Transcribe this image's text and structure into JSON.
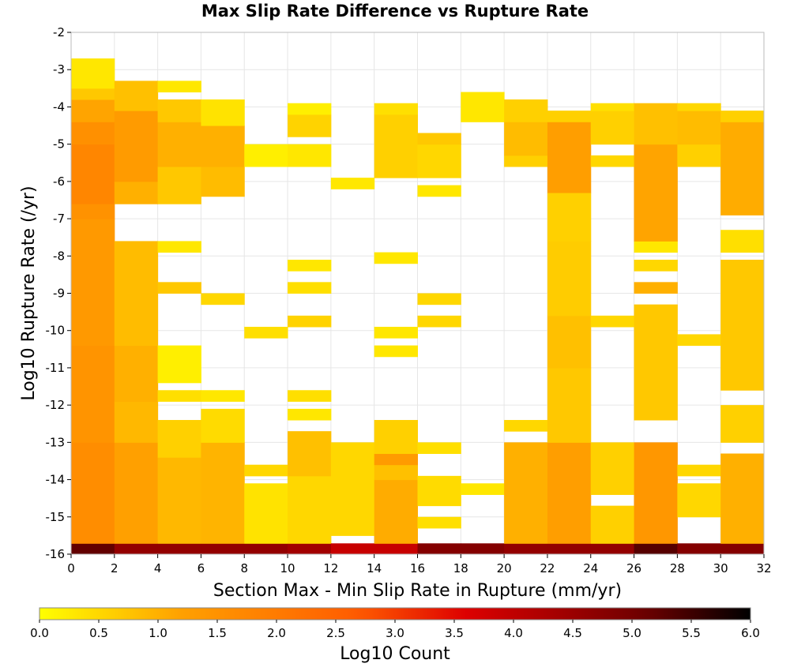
{
  "chart_data": {
    "type": "heatmap",
    "title": "Max Slip Rate Difference vs Rupture Rate",
    "xlabel": "Section Max - Min Slip Rate in Rupture (mm/yr)",
    "ylabel": "Log10 Rupture Rate (/yr)",
    "xlim": [
      0,
      32
    ],
    "ylim": [
      -16,
      -2
    ],
    "x_ticks": [
      "0",
      "2",
      "4",
      "6",
      "8",
      "10",
      "12",
      "14",
      "16",
      "18",
      "20",
      "22",
      "24",
      "26",
      "28",
      "30",
      "32"
    ],
    "y_ticks": [
      "-2",
      "-3",
      "-4",
      "-5",
      "-6",
      "-7",
      "-8",
      "-9",
      "-10",
      "-11",
      "-12",
      "-13",
      "-14",
      "-15",
      "-16"
    ],
    "colorbar": {
      "label": "Log10 Count",
      "range": [
        0.0,
        6.0
      ],
      "ticks": [
        "0.0",
        "0.5",
        "1.0",
        "1.5",
        "2.0",
        "2.5",
        "3.0",
        "3.5",
        "4.0",
        "4.5",
        "5.0",
        "5.5",
        "6.0"
      ],
      "colors": [
        "#ffff00",
        "#ffa000",
        "#ff5a00",
        "#dd0000",
        "#6e0000",
        "#000000"
      ]
    },
    "x_bin_width": 2,
    "y_bin_height": 0.2857,
    "grid": true,
    "columns": [
      {
        "x0": 0,
        "runs": [
          {
            "y0": -16,
            "y1": -15.71,
            "v": 5.2
          },
          {
            "y0": -15.71,
            "y1": -13.0,
            "v": 1.6
          },
          {
            "y0": -13.0,
            "y1": -10.4,
            "v": 1.45
          },
          {
            "y0": -10.4,
            "y1": -7.0,
            "v": 1.35
          },
          {
            "y0": -7.0,
            "y1": -6.6,
            "v": 1.5
          },
          {
            "y0": -6.6,
            "y1": -5.0,
            "v": 1.75
          },
          {
            "y0": -5.0,
            "y1": -4.4,
            "v": 1.55
          },
          {
            "y0": -4.4,
            "y1": -3.8,
            "v": 1.15
          },
          {
            "y0": -3.8,
            "y1": -3.5,
            "v": 0.7
          },
          {
            "y0": -3.5,
            "y1": -2.7,
            "v": 0.3
          }
        ]
      },
      {
        "x0": 2,
        "runs": [
          {
            "y0": -16,
            "y1": -15.71,
            "v": 4.6
          },
          {
            "y0": -15.71,
            "y1": -13.0,
            "v": 1.2
          },
          {
            "y0": -13.0,
            "y1": -11.9,
            "v": 0.9
          },
          {
            "y0": -11.9,
            "y1": -10.4,
            "v": 1.0
          },
          {
            "y0": -10.4,
            "y1": -7.6,
            "v": 0.85
          },
          {
            "y0": -6.6,
            "y1": -6.0,
            "v": 1.0
          },
          {
            "y0": -6.0,
            "y1": -4.1,
            "v": 1.3
          },
          {
            "y0": -4.1,
            "y1": -3.3,
            "v": 0.8
          }
        ]
      },
      {
        "x0": 4,
        "runs": [
          {
            "y0": -16,
            "y1": -15.71,
            "v": 4.6
          },
          {
            "y0": -15.71,
            "y1": -13.4,
            "v": 0.9
          },
          {
            "y0": -13.4,
            "y1": -12.4,
            "v": 0.6
          },
          {
            "y0": -11.9,
            "y1": -11.6,
            "v": 0.4
          },
          {
            "y0": -11.4,
            "y1": -10.4,
            "v": 0.2
          },
          {
            "y0": -9.0,
            "y1": -8.7,
            "v": 0.7
          },
          {
            "y0": -7.9,
            "y1": -7.6,
            "v": 0.3
          },
          {
            "y0": -6.6,
            "y1": -5.6,
            "v": 0.7
          },
          {
            "y0": -5.6,
            "y1": -4.4,
            "v": 1.0
          },
          {
            "y0": -4.4,
            "y1": -3.8,
            "v": 0.7
          },
          {
            "y0": -3.6,
            "y1": -3.3,
            "v": 0.3
          }
        ]
      },
      {
        "x0": 6,
        "runs": [
          {
            "y0": -16,
            "y1": -15.71,
            "v": 4.6
          },
          {
            "y0": -15.71,
            "y1": -13.0,
            "v": 0.95
          },
          {
            "y0": -13.0,
            "y1": -12.1,
            "v": 0.45
          },
          {
            "y0": -11.9,
            "y1": -11.6,
            "v": 0.3
          },
          {
            "y0": -9.3,
            "y1": -9.0,
            "v": 0.5
          },
          {
            "y0": -6.4,
            "y1": -5.6,
            "v": 0.85
          },
          {
            "y0": -5.6,
            "y1": -4.5,
            "v": 1.0
          },
          {
            "y0": -4.5,
            "y1": -3.8,
            "v": 0.35
          }
        ]
      },
      {
        "x0": 8,
        "runs": [
          {
            "y0": -16,
            "y1": -15.71,
            "v": 4.6
          },
          {
            "y0": -15.71,
            "y1": -14.1,
            "v": 0.35
          },
          {
            "y0": -13.9,
            "y1": -13.6,
            "v": 0.5
          },
          {
            "y0": -10.2,
            "y1": -9.9,
            "v": 0.4
          },
          {
            "y0": -5.6,
            "y1": -5.0,
            "v": 0.2
          }
        ]
      },
      {
        "x0": 10,
        "runs": [
          {
            "y0": -16,
            "y1": -15.71,
            "v": 4.4
          },
          {
            "y0": -15.71,
            "y1": -13.9,
            "v": 0.5
          },
          {
            "y0": -13.9,
            "y1": -12.7,
            "v": 0.8
          },
          {
            "y0": -12.4,
            "y1": -12.1,
            "v": 0.3
          },
          {
            "y0": -11.9,
            "y1": -11.6,
            "v": 0.4
          },
          {
            "y0": -9.9,
            "y1": -9.6,
            "v": 0.55
          },
          {
            "y0": -9.0,
            "y1": -8.7,
            "v": 0.4
          },
          {
            "y0": -8.4,
            "y1": -8.1,
            "v": 0.3
          },
          {
            "y0": -5.6,
            "y1": -5.0,
            "v": 0.3
          },
          {
            "y0": -4.8,
            "y1": -4.2,
            "v": 0.55
          },
          {
            "y0": -4.2,
            "y1": -3.9,
            "v": 0.2
          }
        ]
      },
      {
        "x0": 12,
        "runs": [
          {
            "y0": -16,
            "y1": -15.71,
            "v": 3.9
          },
          {
            "y0": -15.5,
            "y1": -13.0,
            "v": 0.5
          },
          {
            "y0": -6.2,
            "y1": -5.9,
            "v": 0.3
          }
        ]
      },
      {
        "x0": 14,
        "runs": [
          {
            "y0": -16,
            "y1": -15.71,
            "v": 3.9
          },
          {
            "y0": -15.71,
            "y1": -14.0,
            "v": 1.05
          },
          {
            "y0": -14.0,
            "y1": -13.6,
            "v": 0.8
          },
          {
            "y0": -13.6,
            "y1": -13.3,
            "v": 1.3
          },
          {
            "y0": -13.3,
            "y1": -12.4,
            "v": 0.6
          },
          {
            "y0": -10.7,
            "y1": -10.4,
            "v": 0.3
          },
          {
            "y0": -10.2,
            "y1": -9.9,
            "v": 0.3
          },
          {
            "y0": -8.2,
            "y1": -7.9,
            "v": 0.3
          },
          {
            "y0": -5.9,
            "y1": -4.2,
            "v": 0.6
          },
          {
            "y0": -4.2,
            "y1": -3.9,
            "v": 0.4
          }
        ]
      },
      {
        "x0": 16,
        "runs": [
          {
            "y0": -16,
            "y1": -15.71,
            "v": 4.8
          },
          {
            "y0": -15.3,
            "y1": -15.0,
            "v": 0.4
          },
          {
            "y0": -14.7,
            "y1": -13.9,
            "v": 0.45
          },
          {
            "y0": -13.3,
            "y1": -13.0,
            "v": 0.4
          },
          {
            "y0": -9.9,
            "y1": -9.6,
            "v": 0.5
          },
          {
            "y0": -9.3,
            "y1": -9.0,
            "v": 0.5
          },
          {
            "y0": -6.4,
            "y1": -6.1,
            "v": 0.3
          },
          {
            "y0": -5.9,
            "y1": -5.0,
            "v": 0.5
          },
          {
            "y0": -5.0,
            "y1": -4.7,
            "v": 0.7
          }
        ]
      },
      {
        "x0": 18,
        "runs": [
          {
            "y0": -16,
            "y1": -15.71,
            "v": 4.8
          },
          {
            "y0": -14.4,
            "y1": -14.1,
            "v": 0.3
          },
          {
            "y0": -4.4,
            "y1": -3.6,
            "v": 0.3
          }
        ]
      },
      {
        "x0": 20,
        "runs": [
          {
            "y0": -16,
            "y1": -15.71,
            "v": 4.6
          },
          {
            "y0": -15.71,
            "y1": -13.0,
            "v": 1.0
          },
          {
            "y0": -12.7,
            "y1": -12.4,
            "v": 0.5
          },
          {
            "y0": -5.6,
            "y1": -5.3,
            "v": 0.6
          },
          {
            "y0": -5.3,
            "y1": -4.4,
            "v": 0.85
          },
          {
            "y0": -4.4,
            "y1": -3.8,
            "v": 0.6
          }
        ]
      },
      {
        "x0": 22,
        "runs": [
          {
            "y0": -16,
            "y1": -15.71,
            "v": 4.6
          },
          {
            "y0": -15.71,
            "y1": -13.0,
            "v": 1.25
          },
          {
            "y0": -13.0,
            "y1": -11.0,
            "v": 0.7
          },
          {
            "y0": -11.0,
            "y1": -9.6,
            "v": 0.8
          },
          {
            "y0": -9.6,
            "y1": -7.6,
            "v": 0.65
          },
          {
            "y0": -7.6,
            "y1": -6.3,
            "v": 0.6
          },
          {
            "y0": -6.3,
            "y1": -4.4,
            "v": 1.25
          },
          {
            "y0": -4.4,
            "y1": -4.1,
            "v": 0.6
          }
        ]
      },
      {
        "x0": 24,
        "runs": [
          {
            "y0": -16,
            "y1": -15.71,
            "v": 4.6
          },
          {
            "y0": -15.71,
            "y1": -14.7,
            "v": 0.6
          },
          {
            "y0": -14.4,
            "y1": -13.0,
            "v": 0.6
          },
          {
            "y0": -9.9,
            "y1": -9.6,
            "v": 0.5
          },
          {
            "y0": -5.6,
            "y1": -5.3,
            "v": 0.5
          },
          {
            "y0": -5.0,
            "y1": -4.1,
            "v": 0.6
          },
          {
            "y0": -4.1,
            "y1": -3.9,
            "v": 0.4
          }
        ]
      },
      {
        "x0": 26,
        "runs": [
          {
            "y0": -16,
            "y1": -15.71,
            "v": 5.3
          },
          {
            "y0": -15.71,
            "y1": -13.0,
            "v": 1.4
          },
          {
            "y0": -12.4,
            "y1": -9.3,
            "v": 0.7
          },
          {
            "y0": -9.0,
            "y1": -8.7,
            "v": 1.0
          },
          {
            "y0": -8.4,
            "y1": -8.1,
            "v": 0.5
          },
          {
            "y0": -7.9,
            "y1": -7.6,
            "v": 0.3
          },
          {
            "y0": -7.6,
            "y1": -5.0,
            "v": 1.15
          },
          {
            "y0": -5.0,
            "y1": -3.9,
            "v": 0.8
          }
        ]
      },
      {
        "x0": 28,
        "runs": [
          {
            "y0": -16,
            "y1": -15.71,
            "v": 4.8
          },
          {
            "y0": -15.0,
            "y1": -14.1,
            "v": 0.5
          },
          {
            "y0": -13.9,
            "y1": -13.6,
            "v": 0.5
          },
          {
            "y0": -10.4,
            "y1": -10.1,
            "v": 0.5
          },
          {
            "y0": -5.6,
            "y1": -5.0,
            "v": 0.6
          },
          {
            "y0": -5.0,
            "y1": -4.1,
            "v": 0.85
          },
          {
            "y0": -4.1,
            "y1": -3.9,
            "v": 0.5
          }
        ]
      },
      {
        "x0": 30,
        "runs": [
          {
            "y0": -16,
            "y1": -15.71,
            "v": 4.8
          },
          {
            "y0": -15.71,
            "y1": -13.3,
            "v": 1.0
          },
          {
            "y0": -13.0,
            "y1": -12.0,
            "v": 0.6
          },
          {
            "y0": -11.6,
            "y1": -8.1,
            "v": 0.7
          },
          {
            "y0": -7.9,
            "y1": -7.3,
            "v": 0.4
          },
          {
            "y0": -6.9,
            "y1": -4.4,
            "v": 1.05
          },
          {
            "y0": -4.4,
            "y1": -4.1,
            "v": 0.6
          }
        ]
      }
    ]
  }
}
